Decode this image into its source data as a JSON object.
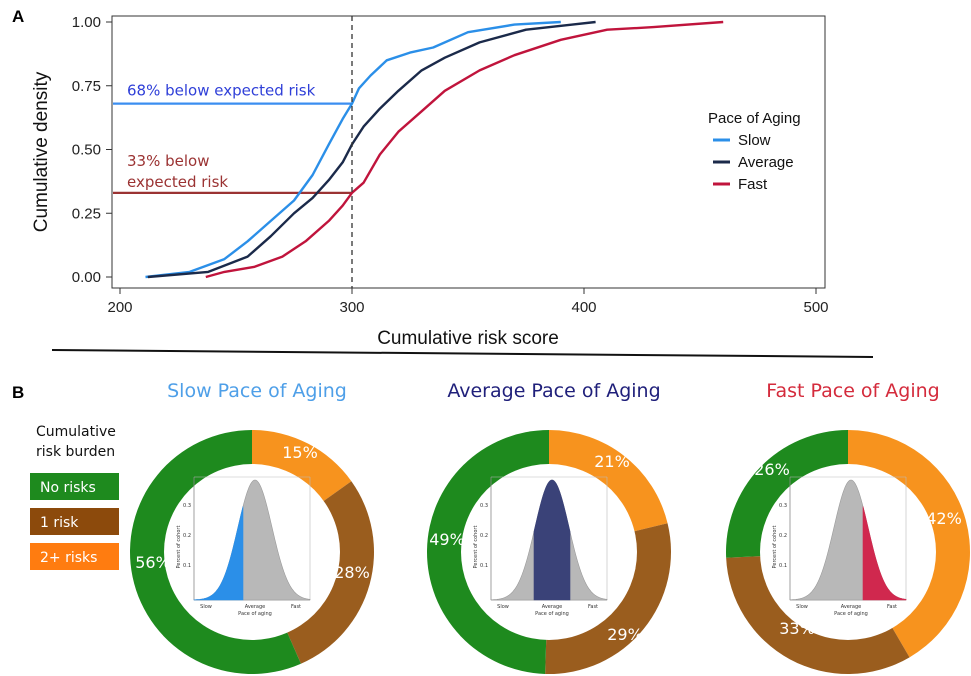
{
  "panel_labels": [
    "A",
    "B"
  ],
  "chart_data": [
    {
      "type": "line",
      "xlabel": "Cumulative risk score",
      "ylabel": "Cumulative density",
      "xlim": [
        200,
        500
      ],
      "ylim": [
        0,
        1
      ],
      "xticks": [
        "200",
        "300",
        "400",
        "500"
      ],
      "yticks": [
        "0.00",
        "0.25",
        "0.50",
        "0.75",
        "1.00"
      ],
      "legend_title": "Pace of Aging",
      "legend_position": "right",
      "reference_line_x": 300,
      "annotations": [
        {
          "text": "68% below expected risk",
          "y": 0.68,
          "color": "#2f3fd8",
          "line_color": "#3b8ef0"
        },
        {
          "text_lines": [
            "33% below",
            "expected risk"
          ],
          "y": 0.33,
          "color": "#9b3333",
          "line_color": "#9b3333"
        }
      ],
      "series": [
        {
          "name": "Slow",
          "color": "#2b8fe8",
          "x": [
            211,
            230,
            245,
            255,
            265,
            275,
            283,
            290,
            296,
            300,
            303,
            308,
            315,
            325,
            335,
            350,
            370,
            390
          ],
          "y": [
            0.0,
            0.02,
            0.07,
            0.14,
            0.22,
            0.3,
            0.4,
            0.52,
            0.62,
            0.68,
            0.74,
            0.79,
            0.85,
            0.88,
            0.9,
            0.96,
            0.99,
            1.0
          ]
        },
        {
          "name": "Average",
          "color": "#1b2a4a",
          "x": [
            212,
            238,
            255,
            265,
            275,
            283,
            290,
            296,
            300,
            305,
            312,
            320,
            330,
            340,
            355,
            375,
            395,
            405
          ],
          "y": [
            0.0,
            0.02,
            0.08,
            0.16,
            0.25,
            0.31,
            0.38,
            0.45,
            0.52,
            0.59,
            0.66,
            0.73,
            0.81,
            0.86,
            0.92,
            0.97,
            0.99,
            1.0
          ]
        },
        {
          "name": "Fast",
          "color": "#c0143c",
          "x": [
            237,
            245,
            258,
            270,
            280,
            290,
            296,
            300,
            305,
            312,
            320,
            330,
            340,
            355,
            370,
            390,
            410,
            430,
            460
          ],
          "y": [
            0.0,
            0.02,
            0.04,
            0.08,
            0.14,
            0.22,
            0.28,
            0.33,
            0.37,
            0.48,
            0.57,
            0.65,
            0.73,
            0.81,
            0.87,
            0.93,
            0.97,
            0.98,
            1.0
          ]
        }
      ]
    },
    {
      "type": "pie",
      "title": "Slow Pace of Aging",
      "title_color": "#4e9fe8",
      "categories": [
        "No risks",
        "1 risk",
        "2+ risks"
      ],
      "values": [
        56,
        28,
        15
      ],
      "labels": [
        "56%",
        "28%",
        "15%"
      ],
      "highlight": "slow",
      "highlight_color": "#2b8fe8"
    },
    {
      "type": "pie",
      "title": "Average Pace of Aging",
      "title_color": "#1f1f7a",
      "categories": [
        "No risks",
        "1 risk",
        "2+ risks"
      ],
      "values": [
        49,
        29,
        21
      ],
      "labels": [
        "49%",
        "29%",
        "21%"
      ],
      "highlight": "average",
      "highlight_color": "#3a4278"
    },
    {
      "type": "pie",
      "title": "Fast Pace of Aging",
      "title_color": "#d42b3c",
      "categories": [
        "No risks",
        "1 risk",
        "2+ risks"
      ],
      "values": [
        26,
        33,
        42
      ],
      "labels": [
        "26%",
        "33%",
        "42%"
      ],
      "highlight": "fast",
      "highlight_color": "#d0284e"
    }
  ],
  "legend_b": {
    "title_lines": [
      "Cumulative",
      "risk burden"
    ],
    "items": [
      {
        "label": "No risks",
        "color": "#1e8a1e"
      },
      {
        "label": "1 risk",
        "color": "#8c4a0c"
      },
      {
        "label": "2+ risks",
        "color": "#ff7c10"
      }
    ]
  },
  "slice_colors": {
    "No risks": "#1e8a1e",
    "1 risk": "#9a5d1e",
    "2+ risks": "#f7931e"
  },
  "inset": {
    "ylabel": "Percent of cohort",
    "yticks": [
      "0.3",
      "0.2",
      "0.1"
    ],
    "xticks": [
      "Slow",
      "Average",
      "Fast"
    ],
    "xlabel": "Pace of aging"
  }
}
